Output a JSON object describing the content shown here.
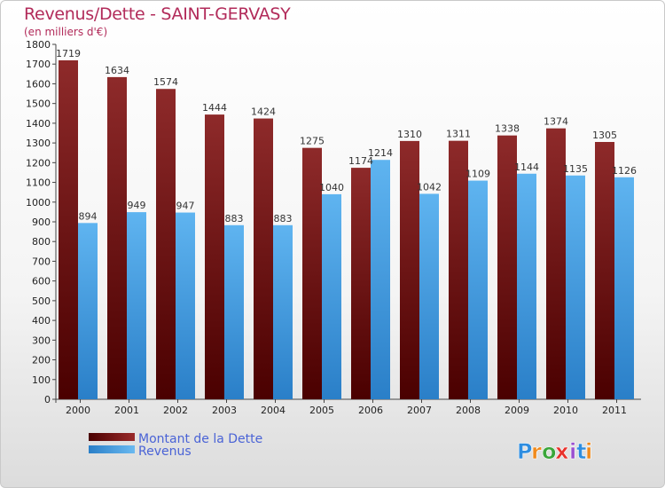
{
  "title": "Revenus/Dette - SAINT-GERVASY",
  "subtitle": "(en milliers d'€)",
  "logo": {
    "text": "Proxiti",
    "letters": [
      "P",
      "r",
      "o",
      "x",
      "i",
      "t",
      "i"
    ],
    "colors": [
      "#2e8de0",
      "#f08a1c",
      "#3aa63a",
      "#e8322c",
      "#9a4fd0",
      "#2e8de0",
      "#f08a1c"
    ]
  },
  "colors": {
    "dette": "#7a1010",
    "revenus": "#3f9de0"
  },
  "chart_data": {
    "type": "bar",
    "title": "Revenus/Dette - SAINT-GERVASY",
    "subtitle": "(en milliers d'€)",
    "categories": [
      "2000",
      "2001",
      "2002",
      "2003",
      "2004",
      "2005",
      "2006",
      "2007",
      "2008",
      "2009",
      "2010",
      "2011"
    ],
    "series": [
      {
        "name": "Montant de la Dette",
        "values": [
          1719,
          1634,
          1574,
          1444,
          1424,
          1275,
          1174,
          1310,
          1311,
          1338,
          1374,
          1305
        ]
      },
      {
        "name": "Revenus",
        "values": [
          894,
          949,
          947,
          883,
          883,
          1040,
          1214,
          1042,
          1109,
          1144,
          1135,
          1126
        ]
      }
    ],
    "ylim": [
      0,
      1800
    ],
    "yticks": [
      0,
      100,
      200,
      300,
      400,
      500,
      600,
      700,
      800,
      900,
      1000,
      1100,
      1200,
      1300,
      1400,
      1500,
      1600,
      1700,
      1800
    ],
    "grid": false,
    "legend": "bottom-left"
  }
}
